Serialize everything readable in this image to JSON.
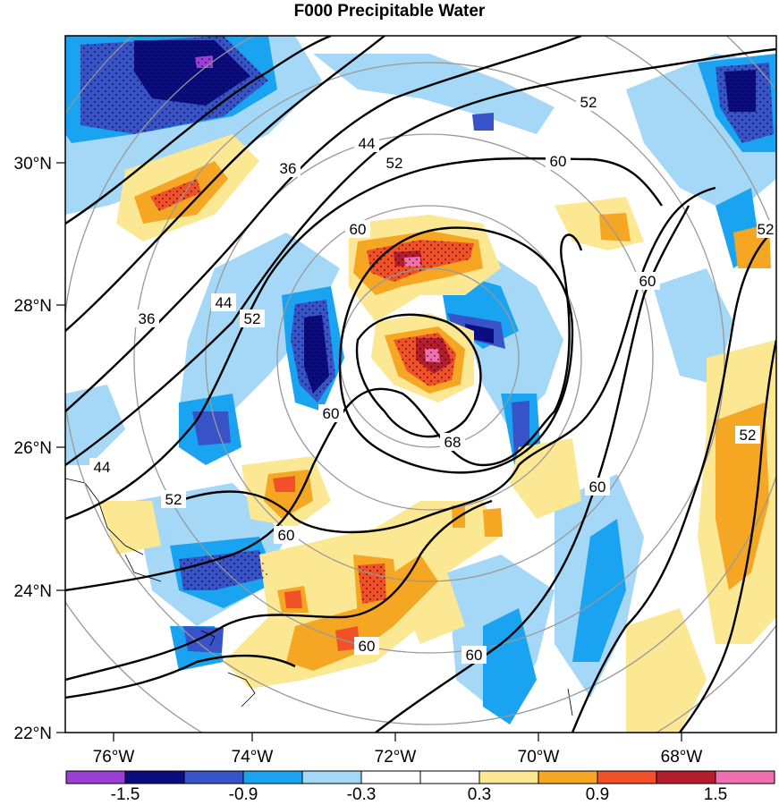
{
  "title": "F000 Precipitable Water",
  "map": {
    "lat_labels": [
      "30°N",
      "28°N",
      "26°N",
      "24°N",
      "22°N"
    ],
    "lon_labels": [
      "76°W",
      "74°W",
      "72°W",
      "70°W",
      "68°W"
    ],
    "lat_range": [
      22,
      31.8
    ],
    "lon_range": [
      -76.8,
      -66.6
    ],
    "contour_labels": [
      "36",
      "44",
      "52",
      "60",
      "68",
      "36",
      "44",
      "52",
      "60",
      "60",
      "60",
      "60",
      "60",
      "52",
      "52",
      "52",
      "60",
      "60",
      "44",
      "52"
    ]
  },
  "colorbar": {
    "colors": [
      "#9a3ed6",
      "#0b0c80",
      "#3852c8",
      "#1aa3f0",
      "#a5d8f7",
      "#ffffff",
      "#ffffff",
      "#fce793",
      "#f5a623",
      "#f25028",
      "#b51c2c",
      "#ef6fb1"
    ],
    "labels": [
      "-1.5",
      "-0.9",
      "-0.3",
      "0.3",
      "0.9",
      "1.5"
    ]
  }
}
